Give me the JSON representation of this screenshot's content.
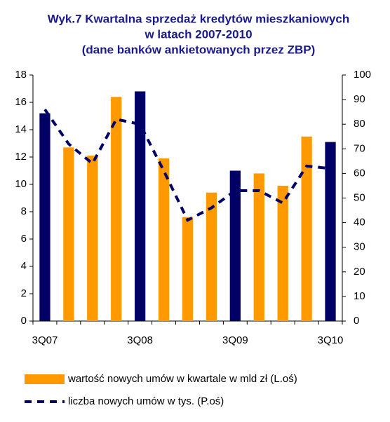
{
  "chart_data": {
    "type": "bar",
    "title": [
      "Wyk.7  Kwartalna sprzedaż kredytów mieszkaniowych",
      "w latach 2007-2010",
      "(dane banków  ankietowanych przez ZBP)"
    ],
    "categories": [
      "3Q07",
      null,
      null,
      null,
      "3Q08",
      null,
      null,
      null,
      "3Q09",
      null,
      null,
      null,
      "3Q10"
    ],
    "series": [
      {
        "name": "wartość nowych umów w kwartale w mld zł (L.oś)",
        "color": "#ff9900",
        "bar_colors": [
          "#000066",
          "#ff9900",
          "#ff9900",
          "#ff9900",
          "#000066",
          "#ff9900",
          "#ff9900",
          "#ff9900",
          "#000066",
          "#ff9900",
          "#ff9900",
          "#ff9900",
          "#000066"
        ],
        "values": [
          15.2,
          12.7,
          12.1,
          16.4,
          16.8,
          11.9,
          7.6,
          9.4,
          11.0,
          10.8,
          9.9,
          13.5,
          13.1
        ]
      },
      {
        "name": "liczba nowych umów w tys. (P.oś)",
        "type": "line",
        "axis": "y2",
        "color": "#000066",
        "values": [
          86,
          72,
          64,
          82,
          80,
          61,
          41,
          46,
          53,
          53,
          48,
          63,
          62
        ]
      }
    ],
    "ylim": [
      0,
      18
    ],
    "yticks": [
      0,
      2,
      4,
      6,
      8,
      10,
      12,
      14,
      16,
      18
    ],
    "y2lim": [
      0,
      100
    ],
    "y2ticks": [
      0,
      10,
      20,
      30,
      40,
      50,
      60,
      70,
      80,
      90,
      100
    ],
    "grid": false
  }
}
